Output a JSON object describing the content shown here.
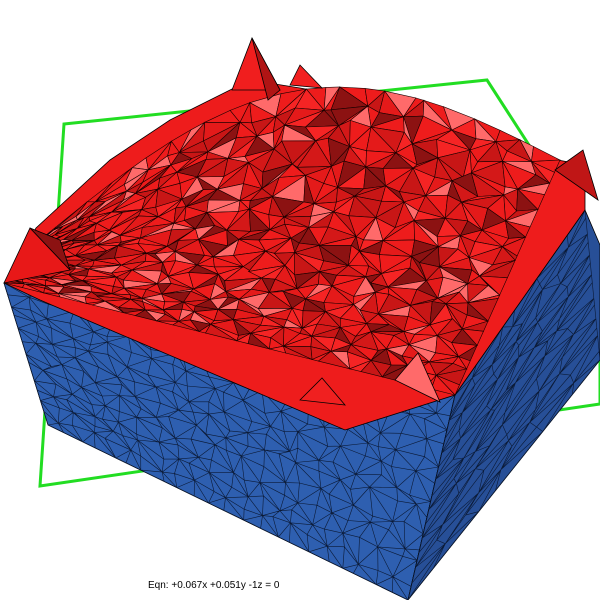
{
  "viewer": {
    "equation_label": "Eqn:  +0.067x +0.051y -1z = 0",
    "colors": {
      "background": "#ffffff",
      "cut_plane": "#22dd22",
      "mesh_top": "#ee1c1c",
      "mesh_top_highlight": "#ff6a6a",
      "mesh_top_shadow": "#8c1212",
      "mesh_side": "#2e5fb0",
      "mesh_side_dark": "#274f97",
      "edges": "#000000"
    }
  }
}
